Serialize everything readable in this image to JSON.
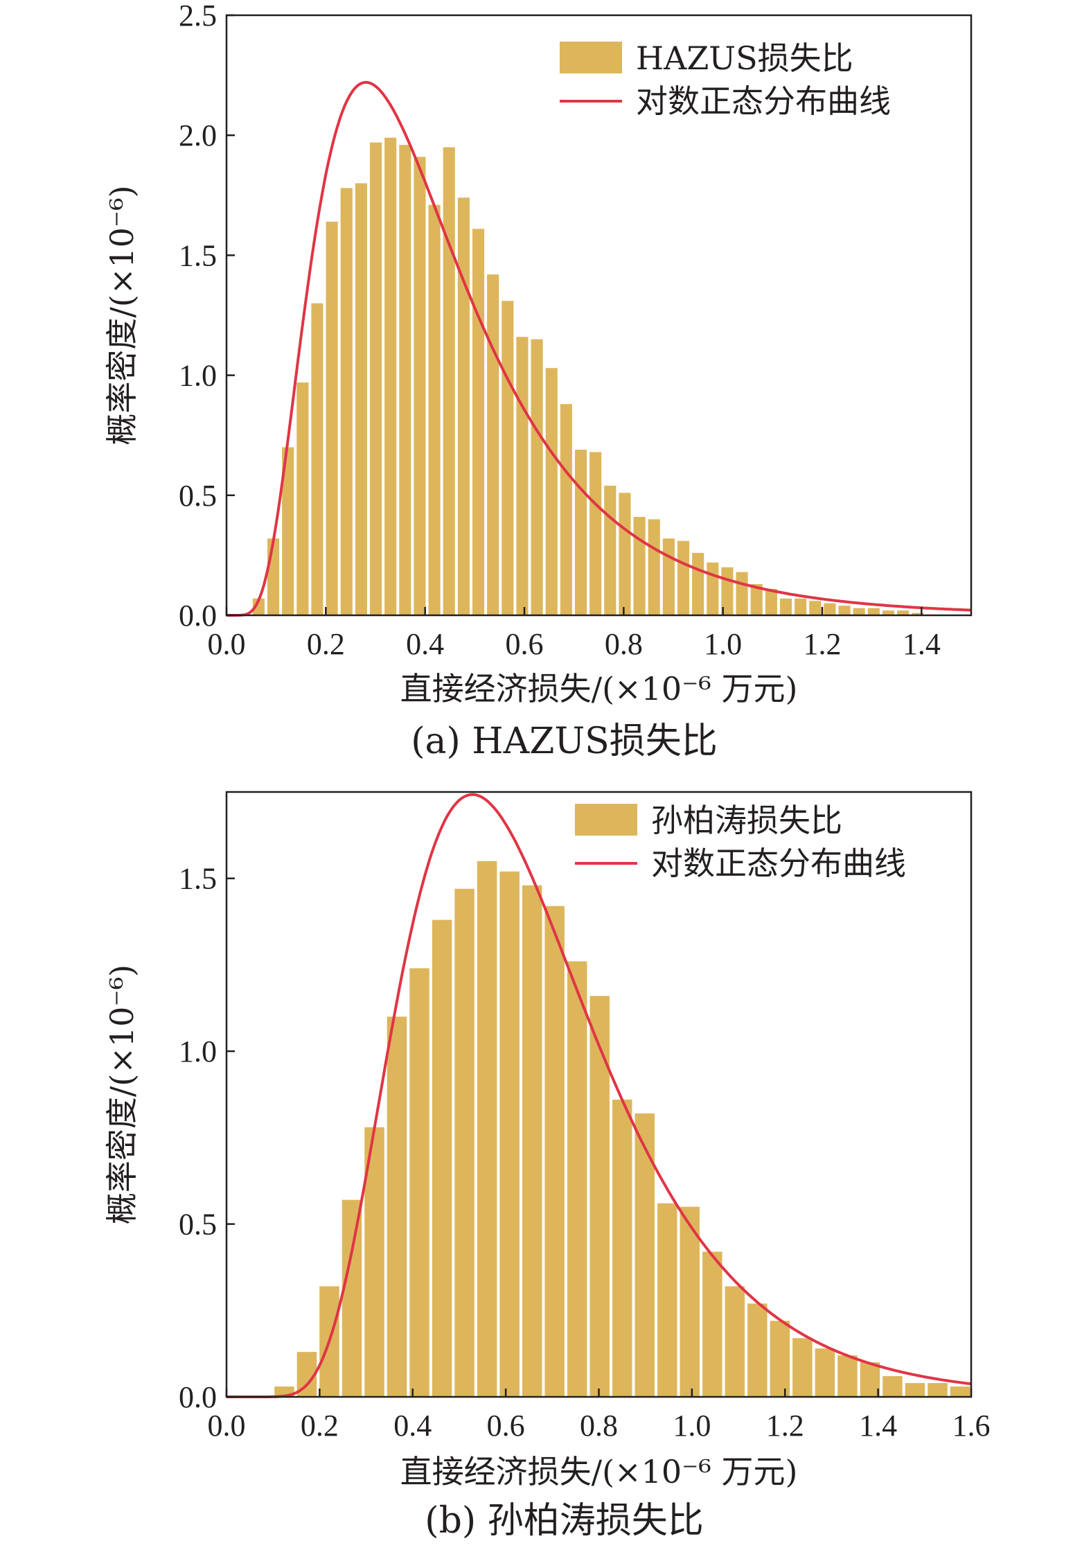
{
  "colors": {
    "bar": "#ddb65c",
    "curve": "#e03545",
    "axis": "#231f20"
  },
  "charts": [
    {
      "caption": "(a) HAZUS损失比",
      "xlabel": "直接经济损失/(×10⁻⁶ 万元)",
      "ylabel": "概率密度/(×10⁻⁶)",
      "legend": {
        "bar_label": "HAZUS损失比",
        "curve_label": "对数正态分布曲线"
      }
    },
    {
      "caption": "(b) 孙柏涛损失比",
      "xlabel": "直接经济损失/(×10⁻⁶ 万元)",
      "ylabel": "概率密度/(×10⁻⁶)",
      "legend": {
        "bar_label": "孙柏涛损失比",
        "curve_label": "对数正态分布曲线"
      }
    }
  ],
  "chart_data": [
    {
      "type": "bar",
      "xlim": [
        0.0,
        1.5
      ],
      "ylim": [
        0.0,
        2.5
      ],
      "x_ticks": [
        0.0,
        0.2,
        0.4,
        0.6,
        0.8,
        1.0,
        1.2,
        1.4
      ],
      "x_tick_labels": [
        "0.0",
        "0.2",
        "0.4",
        "0.6",
        "0.8",
        "1.0",
        "1.2",
        "1.4"
      ],
      "y_ticks": [
        0.0,
        0.5,
        1.0,
        1.5,
        2.0,
        2.5
      ],
      "y_tick_labels": [
        "0.0",
        "0.5",
        "1.0",
        "1.5",
        "2.0",
        "2.5"
      ],
      "bin_start": 0.05,
      "bin_width": 0.0295,
      "values": [
        0.07,
        0.32,
        0.7,
        0.97,
        1.3,
        1.64,
        1.78,
        1.8,
        1.97,
        1.99,
        1.96,
        1.91,
        1.71,
        1.95,
        1.74,
        1.61,
        1.42,
        1.31,
        1.16,
        1.15,
        1.03,
        0.88,
        0.69,
        0.68,
        0.54,
        0.51,
        0.41,
        0.4,
        0.32,
        0.31,
        0.26,
        0.22,
        0.2,
        0.18,
        0.13,
        0.11,
        0.07,
        0.07,
        0.06,
        0.05,
        0.04,
        0.03,
        0.03,
        0.02,
        0.02,
        0.01
      ],
      "curve": {
        "name": "对数正态分布曲线",
        "median": 0.38,
        "sigma": 0.55
      },
      "legend_position": "top-right",
      "grid": false
    },
    {
      "type": "bar",
      "xlim": [
        0.0,
        1.6
      ],
      "ylim": [
        0.0,
        1.75
      ],
      "x_ticks": [
        0.0,
        0.2,
        0.4,
        0.6,
        0.8,
        1.0,
        1.2,
        1.4,
        1.6
      ],
      "x_tick_labels": [
        "0.0",
        "0.2",
        "0.4",
        "0.6",
        "0.8",
        "1.0",
        "1.2",
        "1.4",
        "1.6"
      ],
      "y_ticks": [
        0.0,
        0.5,
        1.0,
        1.5
      ],
      "y_tick_labels": [
        "0.0",
        "0.5",
        "1.0",
        "1.5"
      ],
      "bin_start": 0.1,
      "bin_width": 0.0484,
      "values": [
        0.03,
        0.13,
        0.32,
        0.57,
        0.78,
        1.1,
        1.24,
        1.38,
        1.47,
        1.55,
        1.52,
        1.48,
        1.42,
        1.26,
        1.16,
        0.86,
        0.82,
        0.56,
        0.55,
        0.42,
        0.32,
        0.27,
        0.22,
        0.17,
        0.14,
        0.12,
        0.1,
        0.06,
        0.04,
        0.04,
        0.03
      ],
      "curve": {
        "name": "对数正态分布曲线",
        "median": 0.62,
        "sigma": 0.4
      },
      "legend_position": "top-right",
      "grid": false
    }
  ]
}
